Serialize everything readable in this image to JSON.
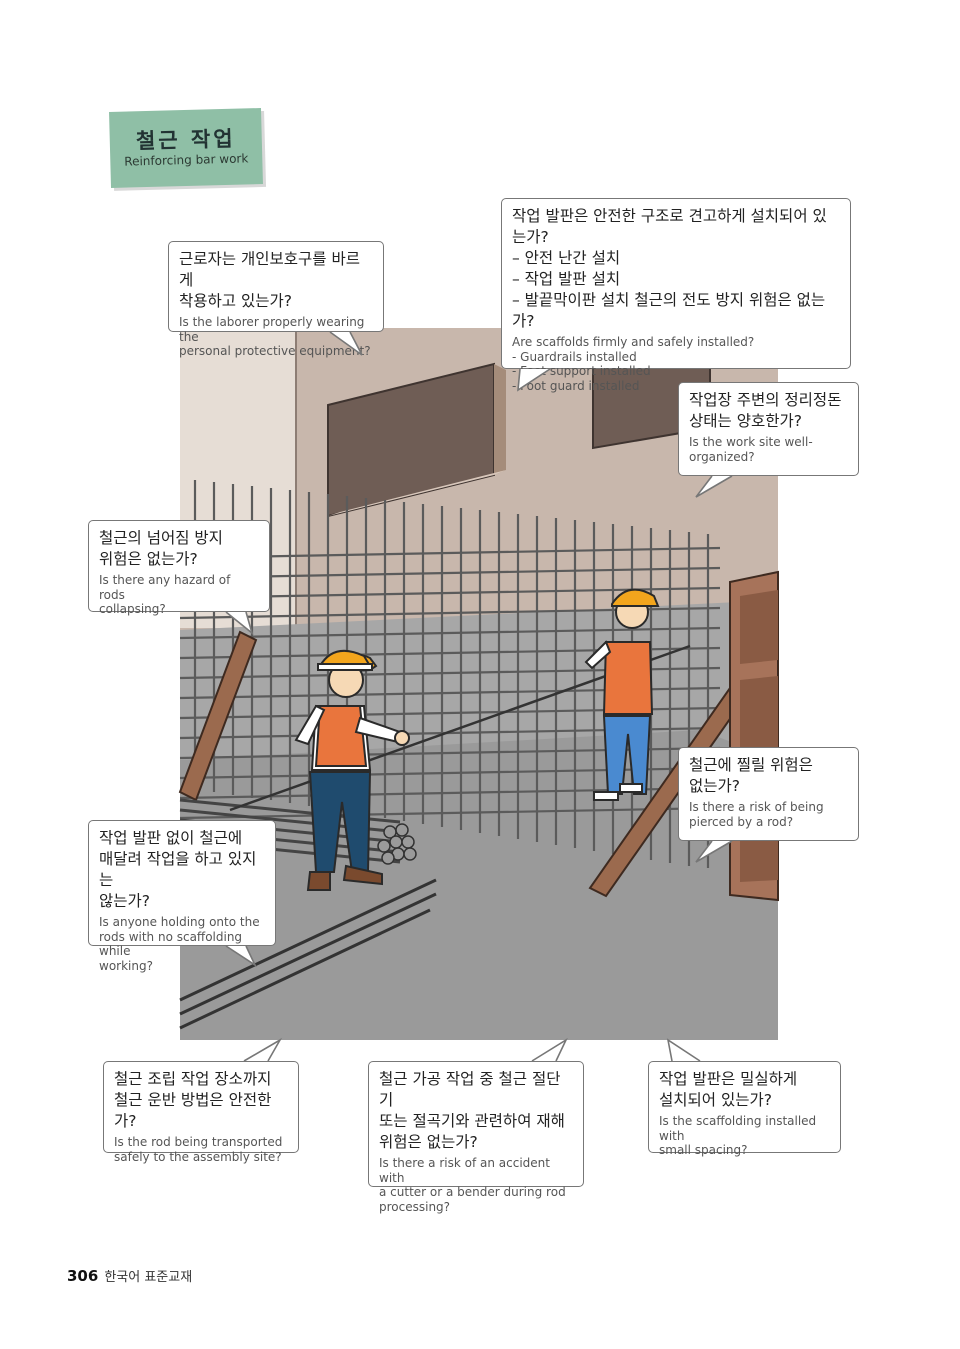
{
  "title": {
    "ko": "철근 작업",
    "en": "Reinforcing bar work"
  },
  "bubbles": [
    {
      "ko": "근로자는 개인보호구를 바르게\n착용하고 있는가?",
      "en": "Is the laborer properly wearing the\npersonal protective equipment?"
    },
    {
      "ko": "작업 발판은 안전한 구조로 견고하게 설치되어 있는가?\n– 안전 난간 설치\n– 작업 발판 설치\n– 발끝막이판 설치 철근의 전도 방지 위험은 없는가?",
      "en": "Are scaffolds firmly and safely installed?\n- Guardrails installed\n- Foot support installed\n- Foot guard installed"
    },
    {
      "ko": "작업장 주변의 정리정돈\n상태는 양호한가?",
      "en": "Is the work site well-\norganized?"
    },
    {
      "ko": "철근의 넘어짐 방지\n위험은 없는가?",
      "en": "Is there any hazard of rods\ncollapsing?"
    },
    {
      "ko": "철근에 찔릴 위험은\n없는가?",
      "en": "Is there a risk of being\npierced by a rod?"
    },
    {
      "ko": "작업 발판 없이 철근에\n매달려 작업을 하고 있지는\n않는가?",
      "en": "Is anyone holding onto the\nrods with no scaffolding while\nworking?"
    },
    {
      "ko": "철근 조립 작업 장소까지\n철근 운반 방법은 안전한가?",
      "en": "Is the rod being transported\nsafely to the assembly site?"
    },
    {
      "ko": "철근 가공 작업 중 철근 절단기\n또는 절곡기와 관련하여 재해\n위험은 없는가?",
      "en": "Is there a risk of an accident with\na cutter or a bender during rod\nprocessing?"
    },
    {
      "ko": "작업 발판은 밀실하게\n설치되어 있는가?",
      "en": "Is the scaffolding installed with\nsmall spacing?"
    }
  ],
  "footer": {
    "page_number": "306",
    "book_title": "한국어 표준교재"
  }
}
